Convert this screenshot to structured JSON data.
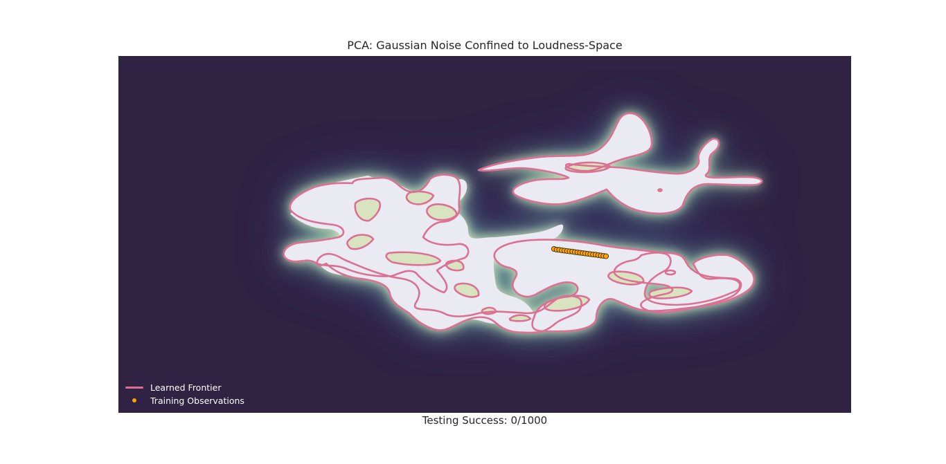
{
  "chart_data": {
    "type": "contour",
    "title": "PCA: Gaussian Noise Confined to Loudness-Space",
    "xlabel": "Testing Success: 0/1000",
    "ylabel": "",
    "grid": false,
    "axes_ticks": false,
    "legend_position": "bottom-left",
    "legend": [
      {
        "label": "Learned Frontier",
        "kind": "line",
        "color": "#db7093"
      },
      {
        "label": "Training Observations",
        "kind": "marker",
        "color": "#ffa500"
      }
    ],
    "series": [
      {
        "name": "Training Observations",
        "kind": "scatter",
        "x": [
          0.0,
          0.05,
          0.1,
          0.15,
          0.2,
          0.25,
          0.3,
          0.35,
          0.4,
          0.45,
          0.5,
          0.55,
          0.6,
          0.65,
          0.7,
          0.75,
          0.8,
          0.85,
          0.9,
          0.95,
          1.0
        ],
        "y": [
          0.0,
          -0.04,
          -0.05,
          -0.08,
          -0.1,
          -0.12,
          -0.14,
          -0.15,
          -0.18,
          -0.2,
          -0.22,
          -0.24,
          -0.26,
          -0.28,
          -0.3,
          -0.32,
          -0.33,
          -0.36,
          -0.38,
          -0.4,
          -0.42
        ]
      }
    ]
  },
  "colors": {
    "background": "#2f2243",
    "density_low": "#3f4a8c",
    "density_mid": "#7fc8a3",
    "density_high": "#d8e4c0",
    "inside": "#eaeaf2",
    "frontier": "#db7093",
    "observation_fill": "#ffa500",
    "observation_edge": "#3a2a10"
  }
}
